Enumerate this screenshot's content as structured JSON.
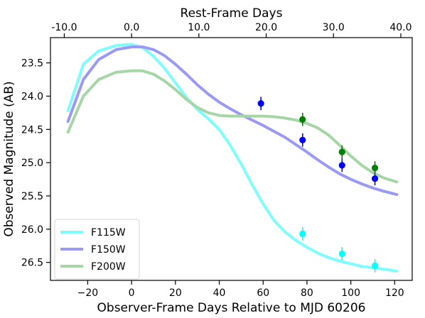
{
  "chart_data": {
    "type": "scatter",
    "xlabel": "Observer-Frame Days Relative to MJD 60206",
    "ylabel": "Observed Magnitude (AB)",
    "top_xlabel": "Rest-Frame Days",
    "xlim": [
      -37,
      128
    ],
    "ylim": [
      26.77,
      23.12
    ],
    "y_inverted": true,
    "x_ticks": [
      -20,
      0,
      20,
      40,
      60,
      80,
      100,
      120
    ],
    "x_tick_labels": [
      "−20",
      "0",
      "20",
      "40",
      "60",
      "80",
      "100",
      "120"
    ],
    "y_ticks": [
      23.5,
      24.0,
      24.5,
      25.0,
      25.5,
      26.0,
      26.5
    ],
    "y_tick_labels": [
      "23.5",
      "24.0",
      "24.5",
      "25.0",
      "25.5",
      "26.0",
      "26.5"
    ],
    "top_ticks_rest": [
      -10,
      0,
      10,
      20,
      30,
      40
    ],
    "top_tick_labels": [
      "-10.0",
      "0.0",
      "10.0",
      "20.0",
      "30.0",
      "40.0"
    ],
    "rest_frame_zero_obs_day": 0,
    "rest_frame_scale": 3.07,
    "grid": false,
    "legend_position": "lower-left",
    "series": [
      {
        "name": "F115W",
        "line_color": "#7ffcfc",
        "point_color": "#00ffff",
        "curve": [
          [
            -29,
            24.22
          ],
          [
            -22,
            23.52
          ],
          [
            -15,
            23.32
          ],
          [
            -7,
            23.24
          ],
          [
            0,
            23.22
          ],
          [
            5,
            23.27
          ],
          [
            10,
            23.4
          ],
          [
            15,
            23.58
          ],
          [
            20,
            23.8
          ],
          [
            25,
            24.02
          ],
          [
            30,
            24.2
          ],
          [
            35,
            24.34
          ],
          [
            40,
            24.5
          ],
          [
            45,
            24.74
          ],
          [
            50,
            25.02
          ],
          [
            55,
            25.33
          ],
          [
            60,
            25.62
          ],
          [
            65,
            25.87
          ],
          [
            70,
            26.04
          ],
          [
            75,
            26.17
          ],
          [
            80,
            26.27
          ],
          [
            85,
            26.36
          ],
          [
            90,
            26.43
          ],
          [
            95,
            26.48
          ],
          [
            100,
            26.52
          ],
          [
            105,
            26.56
          ],
          [
            110,
            26.58
          ],
          [
            115,
            26.6
          ],
          [
            121,
            26.63
          ]
        ],
        "points": [
          [
            78,
            26.07,
            0.1
          ],
          [
            96,
            26.37,
            0.1
          ],
          [
            111,
            26.55,
            0.1
          ]
        ]
      },
      {
        "name": "F150W",
        "line_color": "#9a9af4",
        "point_color": "#0000ff",
        "curve": [
          [
            -29,
            24.38
          ],
          [
            -22,
            23.75
          ],
          [
            -15,
            23.45
          ],
          [
            -7,
            23.3
          ],
          [
            0,
            23.26
          ],
          [
            5,
            23.26
          ],
          [
            10,
            23.3
          ],
          [
            15,
            23.39
          ],
          [
            20,
            23.52
          ],
          [
            25,
            23.67
          ],
          [
            30,
            23.83
          ],
          [
            35,
            23.97
          ],
          [
            40,
            24.09
          ],
          [
            45,
            24.19
          ],
          [
            50,
            24.28
          ],
          [
            55,
            24.36
          ],
          [
            60,
            24.44
          ],
          [
            65,
            24.53
          ],
          [
            70,
            24.62
          ],
          [
            75,
            24.73
          ],
          [
            80,
            24.84
          ],
          [
            85,
            24.96
          ],
          [
            90,
            25.07
          ],
          [
            95,
            25.17
          ],
          [
            100,
            25.25
          ],
          [
            105,
            25.32
          ],
          [
            110,
            25.38
          ],
          [
            115,
            25.43
          ],
          [
            121,
            25.48
          ]
        ],
        "points": [
          [
            59,
            24.11,
            0.1
          ],
          [
            78,
            24.66,
            0.1
          ],
          [
            96,
            25.04,
            0.1
          ],
          [
            111,
            25.24,
            0.1
          ]
        ]
      },
      {
        "name": "F200W",
        "line_color": "#a6d5a6",
        "point_color": "#008000",
        "curve": [
          [
            -29,
            24.54
          ],
          [
            -22,
            24.0
          ],
          [
            -15,
            23.75
          ],
          [
            -7,
            23.64
          ],
          [
            0,
            23.62
          ],
          [
            5,
            23.62
          ],
          [
            10,
            23.67
          ],
          [
            15,
            23.77
          ],
          [
            20,
            23.9
          ],
          [
            25,
            24.05
          ],
          [
            30,
            24.17
          ],
          [
            35,
            24.25
          ],
          [
            40,
            24.29
          ],
          [
            45,
            24.3
          ],
          [
            50,
            24.3
          ],
          [
            55,
            24.3
          ],
          [
            60,
            24.3
          ],
          [
            65,
            24.31
          ],
          [
            70,
            24.33
          ],
          [
            75,
            24.36
          ],
          [
            80,
            24.41
          ],
          [
            85,
            24.48
          ],
          [
            90,
            24.59
          ],
          [
            95,
            24.74
          ],
          [
            100,
            24.9
          ],
          [
            105,
            25.04
          ],
          [
            110,
            25.15
          ],
          [
            115,
            25.23
          ],
          [
            121,
            25.29
          ]
        ],
        "points": [
          [
            78,
            24.35,
            0.1
          ],
          [
            96,
            24.84,
            0.1
          ],
          [
            111,
            25.08,
            0.1
          ]
        ]
      }
    ]
  }
}
